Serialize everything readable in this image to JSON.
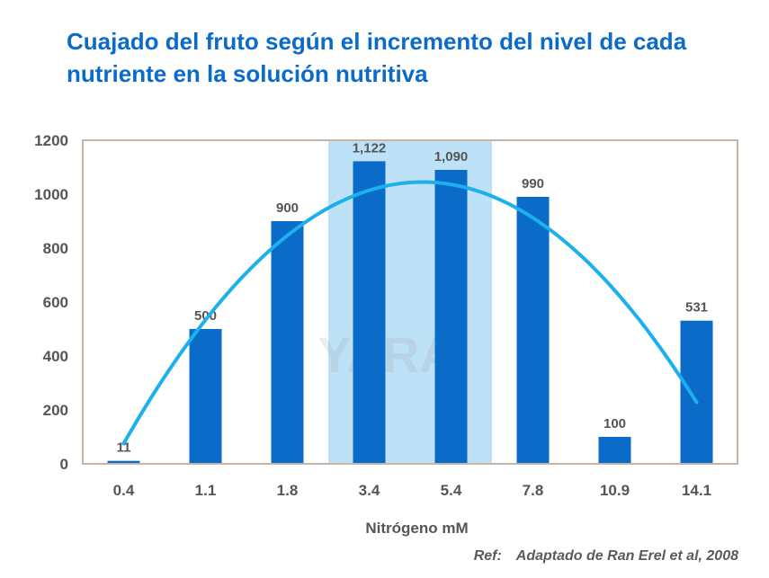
{
  "title_lines": [
    "Cuajado del fruto según el incremento del nivel de cada",
    "nutriente en la solución nutritiva"
  ],
  "watermark": "YARA",
  "reference": {
    "label": "Ref:",
    "text": "Adaptado de Ran Erel et al, 2008"
  },
  "colors": {
    "title": "#0a6bc9",
    "bar": "#0a6bc9",
    "highlight": "#bde1f7",
    "curve": "#1cb0ec",
    "frame": "#c9b3a3"
  },
  "chart_data": {
    "type": "bar",
    "title": "Cuajado del fruto según el incremento del nivel de cada nutriente en la solución nutritiva",
    "xlabel": "Nitrógeno mM",
    "ylabel": "",
    "categories": [
      "0.4",
      "1.1",
      "1.8",
      "3.4",
      "5.4",
      "7.8",
      "10.9",
      "14.1"
    ],
    "values": [
      11,
      500,
      900,
      1122,
      1090,
      990,
      100,
      531
    ],
    "value_labels": [
      "11",
      "500",
      "900",
      "1,122",
      "1,090",
      "990",
      "100",
      "531"
    ],
    "ylim": [
      0,
      1200
    ],
    "yticks": [
      0,
      200,
      400,
      600,
      800,
      1000,
      1200
    ],
    "grid": false,
    "highlight_categories": [
      "3.4",
      "5.4"
    ],
    "trend_curve": {
      "type": "quadratic",
      "from": 0.4,
      "to": 14.1,
      "start_value": 85,
      "peak_value": 1045,
      "peak_category_index": 3.65,
      "end_value": 220
    }
  }
}
